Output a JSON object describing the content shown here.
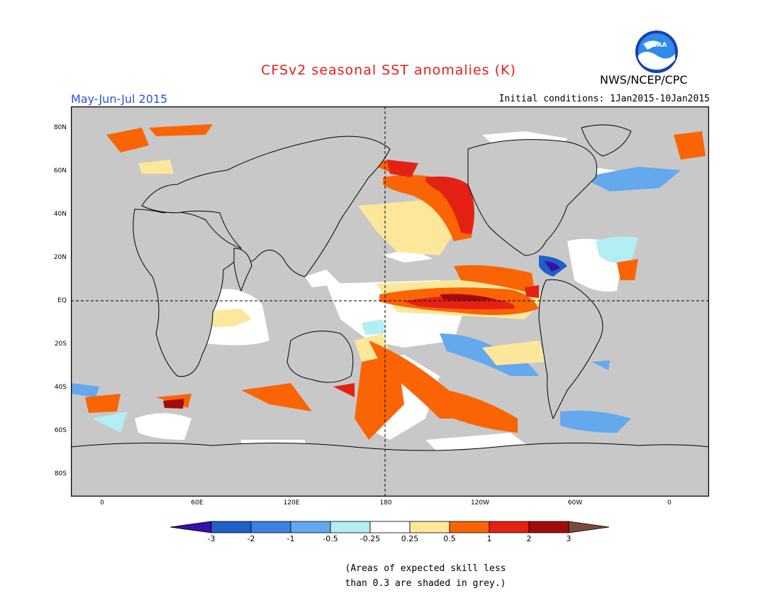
{
  "title": "CFSv2 seasonal SST anomalies (K)",
  "agency": "NWS/NCEP/CPC",
  "logo_text": "NOAA",
  "season": "May-Jun-Jul 2015",
  "initial_conditions": "Initial conditions: 1Jan2015-10Jan2015",
  "lat_labels": [
    "80N",
    "60N",
    "40N",
    "20N",
    "EQ",
    "20S",
    "40S",
    "60S",
    "80S"
  ],
  "lon_labels": [
    "0",
    "60E",
    "120E",
    "180",
    "120W",
    "60W",
    "0"
  ],
  "colorbar": {
    "labels": [
      "-3",
      "-2",
      "-1",
      "-0.5",
      "-0.25",
      "0.25",
      "0.5",
      "1",
      "2",
      "3"
    ],
    "colors": [
      "#3a0ea8",
      "#1f5fc8",
      "#3a82e2",
      "#64a8ee",
      "#b2eef4",
      "#ffffff",
      "#fde79a",
      "#fb6404",
      "#e32214",
      "#a20c0c",
      "#7a4a3a"
    ]
  },
  "note": "(Areas of expected skill less than 0.3 are shaded in grey.)",
  "colors": {
    "grey": "#c8c8c8",
    "title": "#e81c1c",
    "season": "#2a52e0"
  }
}
